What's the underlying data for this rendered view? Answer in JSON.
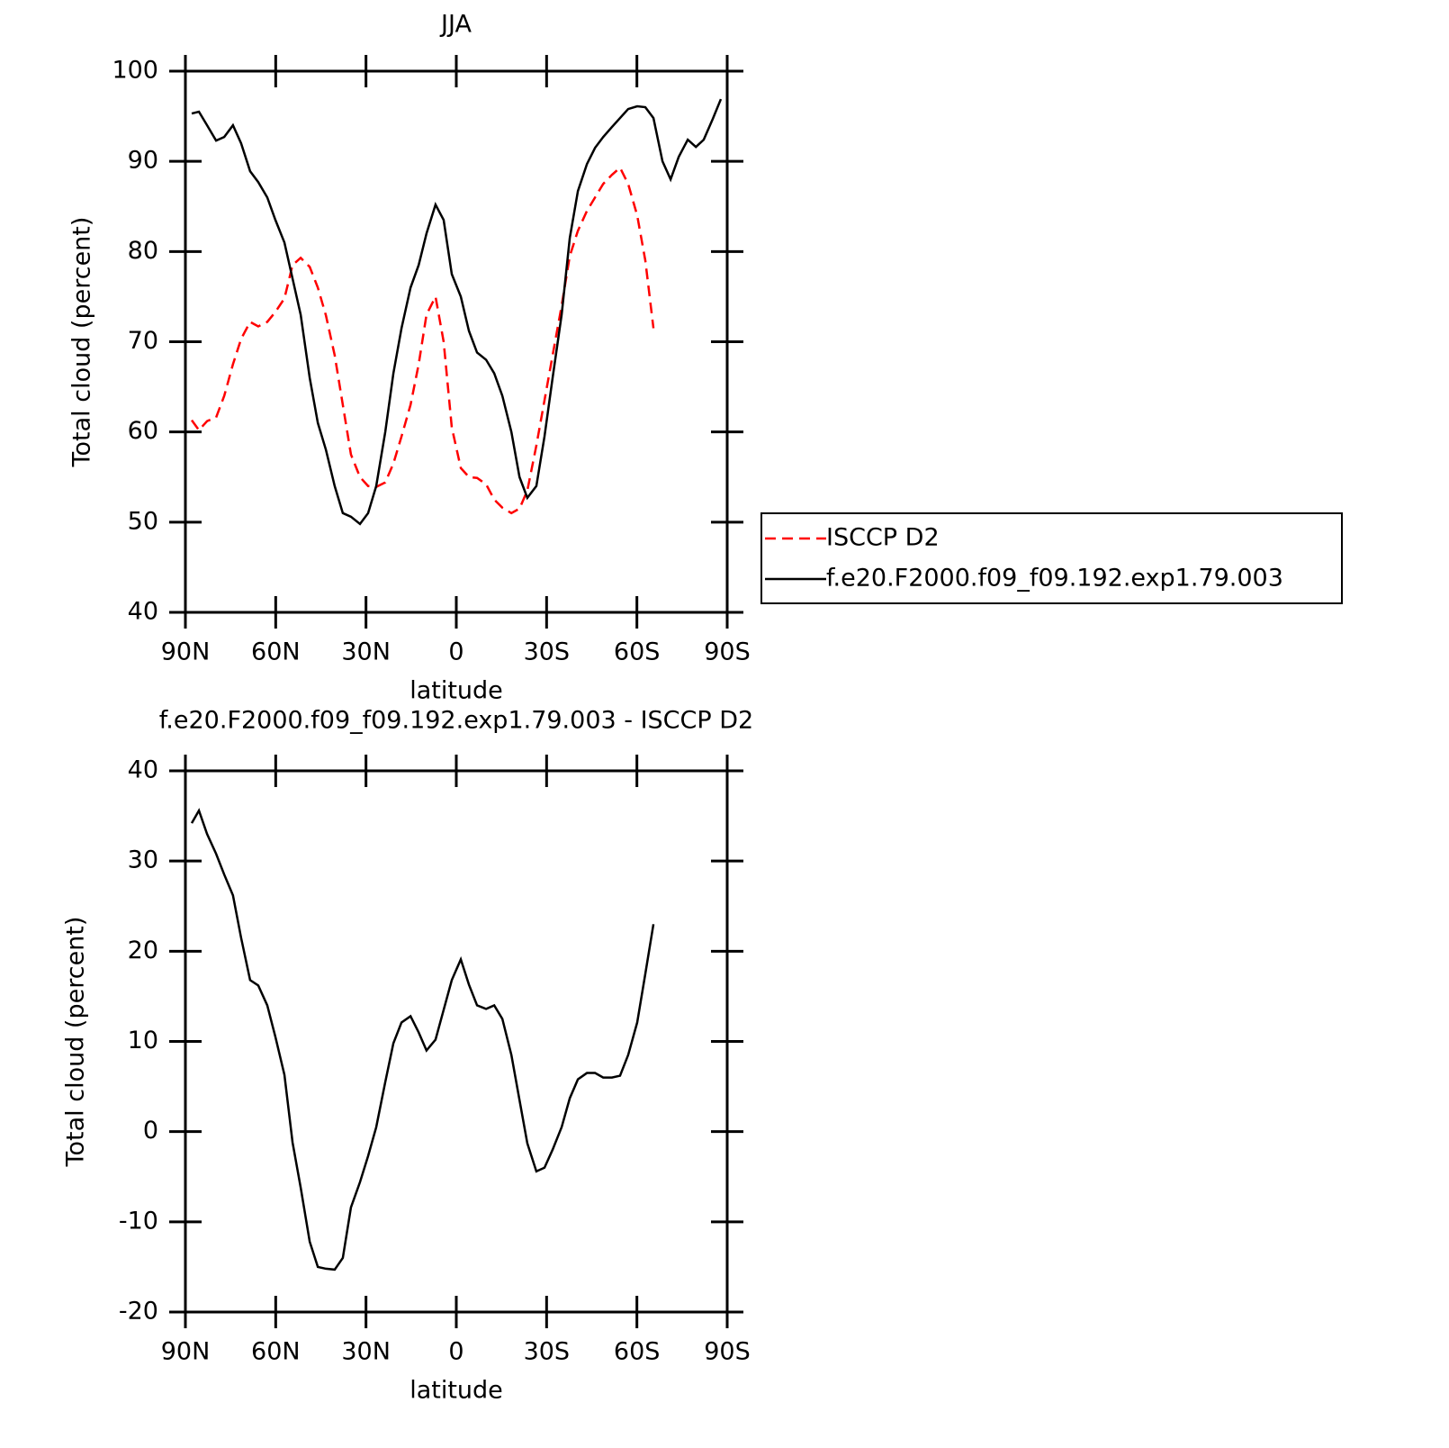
{
  "chart_data": [
    {
      "type": "line",
      "title": "JJA",
      "xlabel": "latitude",
      "ylabel": "Total cloud (percent)",
      "x": [
        87.9,
        85.5,
        82.8,
        79.8,
        77.1,
        74.2,
        71.5,
        68.5,
        65.8,
        62.8,
        60.1,
        57.1,
        54.4,
        51.7,
        48.7,
        46.0,
        43.3,
        40.4,
        37.7,
        35.0,
        32.0,
        29.3,
        26.6,
        23.6,
        20.9,
        18.2,
        15.2,
        12.5,
        9.9,
        6.9,
        4.2,
        1.5,
        -1.5,
        -4.2,
        -6.9,
        -9.9,
        -12.6,
        -15.3,
        -18.3,
        -21.0,
        -23.6,
        -26.6,
        -29.3,
        -32.0,
        -35.0,
        -37.7,
        -40.4,
        -43.4,
        -46.1,
        -48.8,
        -51.7,
        -54.4,
        -57.1,
        -60.1,
        -62.8,
        -65.5,
        -68.5,
        -71.2,
        -73.9,
        -76.9,
        -79.6,
        -82.2,
        -85.2,
        -87.9
      ],
      "xlim": [
        90,
        -90
      ],
      "xticks": [
        {
          "value": 90,
          "label": "90N"
        },
        {
          "value": 60,
          "label": "60N"
        },
        {
          "value": 30,
          "label": "30N"
        },
        0,
        {
          "value": -30,
          "label": "30S"
        },
        {
          "value": -60,
          "label": "60S"
        },
        {
          "value": -90,
          "label": "90S"
        }
      ],
      "ylim": [
        40,
        100
      ],
      "yticks": [
        40,
        50,
        60,
        70,
        80,
        90,
        100
      ],
      "legend": "right",
      "series": [
        {
          "name": "ISCCP D2",
          "color": "#ff0000",
          "style": "dashed",
          "values": [
            61.3,
            60.2,
            61.2,
            61.6,
            64,
            67.5,
            70.3,
            72.2,
            71.7,
            72.2,
            73.3,
            74.8,
            78.5,
            79.3,
            78.3,
            76,
            72.9,
            68.5,
            63,
            57.5,
            55,
            54,
            53.9,
            54.4,
            56.5,
            59.5,
            63,
            67.5,
            73,
            75,
            70,
            60.5,
            56,
            55,
            54.9,
            54.2,
            52.5,
            51.6,
            51,
            51.5,
            53.5,
            58.5,
            63.5,
            68.5,
            74,
            79.5,
            82.3,
            84.5,
            86,
            87.5,
            88.5,
            89.3,
            87.5,
            84,
            79,
            71.5,
            null,
            null,
            null,
            null,
            null,
            null,
            null,
            null
          ]
        },
        {
          "name": "f.e20.F2000.f09_f09.192.exp1.79.003",
          "color": "#000000",
          "style": "solid",
          "values": [
            95.3,
            95.5,
            94,
            92.3,
            92.7,
            94,
            92,
            88.9,
            87.7,
            86,
            83.5,
            81,
            77,
            73,
            66,
            61,
            58,
            54,
            51,
            50.6,
            49.8,
            51,
            54,
            60,
            66.5,
            71.5,
            76,
            78.5,
            82,
            85.2,
            83.5,
            77.5,
            75,
            71.2,
            68.8,
            68,
            66.5,
            64,
            60,
            55,
            52.7,
            54,
            59.5,
            66,
            73,
            81.5,
            86.7,
            89.7,
            91.5,
            92.7,
            93.8,
            94.8,
            95.8,
            96.1,
            96,
            94.8,
            90,
            88,
            90.5,
            92.4,
            91.6,
            92.4,
            94.7,
            96.9
          ]
        }
      ]
    },
    {
      "type": "line",
      "title": "f.e20.F2000.f09_f09.192.exp1.79.003 - ISCCP D2",
      "xlabel": "latitude",
      "ylabel": "Total cloud (percent)",
      "x": [
        87.9,
        85.5,
        82.8,
        79.8,
        77.1,
        74.2,
        71.5,
        68.5,
        65.8,
        62.8,
        60.1,
        57.1,
        54.4,
        51.7,
        48.7,
        46.0,
        43.3,
        40.4,
        37.7,
        35.0,
        32.0,
        29.3,
        26.6,
        23.6,
        20.9,
        18.2,
        15.2,
        12.5,
        9.9,
        6.9,
        4.2,
        1.5,
        -1.5,
        -4.2,
        -6.9,
        -9.9,
        -12.6,
        -15.3,
        -18.3,
        -21.0,
        -23.6,
        -26.6,
        -29.3,
        -32.0,
        -35.0,
        -37.7,
        -40.4,
        -43.4,
        -46.1,
        -48.8,
        -51.7,
        -54.4,
        -57.1,
        -60.1,
        -62.8,
        -65.5,
        -68.5,
        -71.2,
        -73.9,
        -76.9,
        -79.6,
        -82.2,
        -85.2,
        -87.9
      ],
      "xlim": [
        90,
        -90
      ],
      "xticks": [
        {
          "value": 90,
          "label": "90N"
        },
        {
          "value": 60,
          "label": "60N"
        },
        {
          "value": 30,
          "label": "30N"
        },
        0,
        {
          "value": -30,
          "label": "30S"
        },
        {
          "value": -60,
          "label": "60S"
        },
        {
          "value": -90,
          "label": "90S"
        }
      ],
      "ylim": [
        -20,
        40
      ],
      "yticks": [
        -20,
        -10,
        0,
        10,
        20,
        30,
        40
      ],
      "series": [
        {
          "color": "#000000",
          "style": "solid",
          "values": [
            34.2,
            35.6,
            33,
            30.8,
            28.5,
            26.2,
            21.5,
            16.8,
            16.2,
            14,
            10.5,
            6.3,
            -1.2,
            -6.2,
            -12.2,
            -15,
            -15.2,
            -15.3,
            -14,
            -8.4,
            -5.6,
            -2.7,
            0.5,
            5.5,
            9.8,
            12.1,
            12.8,
            11,
            9,
            10.2,
            13.5,
            16.8,
            19.1,
            16.3,
            14,
            13.6,
            14,
            12.5,
            8.5,
            3.5,
            -1.3,
            -4.4,
            -4,
            -2,
            0.5,
            3.7,
            5.8,
            6.5,
            6.5,
            6,
            6,
            6.2,
            8.5,
            12.1,
            17.5,
            23,
            null,
            null,
            null,
            null,
            null,
            null,
            null,
            null
          ]
        }
      ]
    }
  ]
}
